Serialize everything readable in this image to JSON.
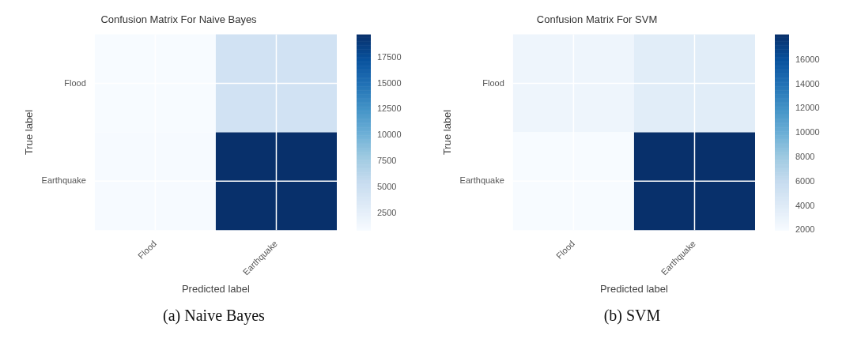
{
  "chart_data": [
    {
      "type": "heatmap",
      "title": "Confusion Matrix For Naive Bayes",
      "xlabel": "Predicted label",
      "ylabel": "True label",
      "categories": [
        "Flood",
        "Earthquake"
      ],
      "y_categories": [
        "Flood",
        "Earthquake"
      ],
      "cells": [
        [
          900,
          4500
        ],
        [
          1000,
          19700
        ]
      ],
      "clim": [
        900,
        19700
      ],
      "cticks": [
        2500,
        5000,
        7500,
        10000,
        12500,
        15000,
        17500
      ],
      "grid": true,
      "annotations": [
        "(a) Naive Bayes"
      ]
    },
    {
      "type": "heatmap",
      "title": "Confusion Matrix For SVM",
      "xlabel": "Predicted label",
      "ylabel": "True label",
      "categories": [
        "Flood",
        "Earthquake"
      ],
      "y_categories": [
        "Flood",
        "Earthquake"
      ],
      "cells": [
        [
          2700,
          3800
        ],
        [
          2000,
          18100
        ]
      ],
      "clim": [
        2000,
        18100
      ],
      "cticks": [
        2000,
        4000,
        6000,
        8000,
        10000,
        12000,
        14000,
        16000
      ],
      "grid": true,
      "annotations": [
        "(b) SVM"
      ]
    }
  ]
}
